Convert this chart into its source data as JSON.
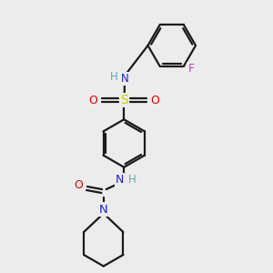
{
  "background_color": "#ececec",
  "bond_color": "#1a1a1a",
  "atom_colors": {
    "N": "#2020cc",
    "H": "#5aadad",
    "O": "#dd0000",
    "S": "#cccc00",
    "F": "#bb44bb"
  },
  "line_width": 1.6,
  "fig_size": [
    3.0,
    3.0
  ],
  "dpi": 100
}
